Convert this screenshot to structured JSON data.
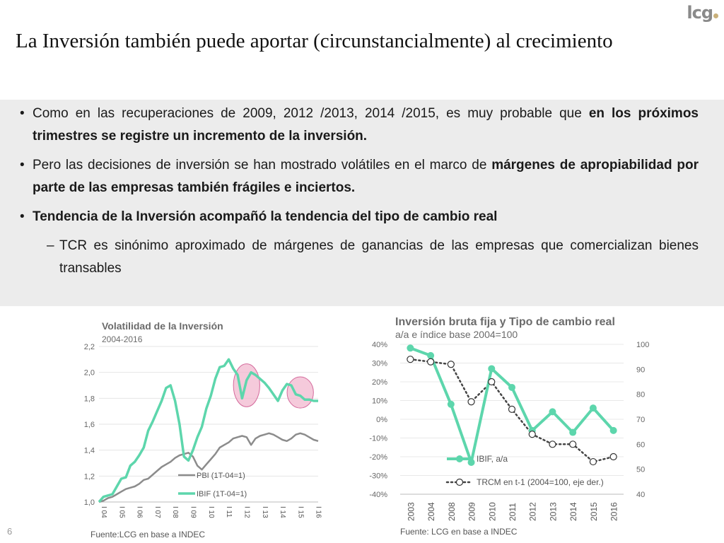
{
  "slide": {
    "title": "La Inversión también puede aportar (circunstancialmente) al crecimiento",
    "logo": "lcg",
    "page_number": "6"
  },
  "bullets": {
    "b1_part1": "Como en las recuperaciones de 2009, 2012 /2013, 2014 /2015, es muy probable que ",
    "b1_bold": "en los próximos trimestres se registre un incremento de la inversión.",
    "b2_part1": "Pero las decisiones de inversión se han mostrado volátiles en el marco de ",
    "b2_bold": "márgenes de apropiabilidad por parte de las empresas también frágiles e inciertos.",
    "b3_bold": "Tendencia de la Inversión acompañó la tendencia del tipo de cambio real",
    "b4_dash": "–",
    "b4_text": "TCR es sinónimo aproximado de márgenes de ganancias de las empresas que comercializan bienes transables"
  },
  "chart_data": [
    {
      "type": "line",
      "title": "Volatilidad de la Inversión",
      "subtitle": "2004-2016",
      "source": "Fuente:LCG en base a INDEC",
      "ylim": [
        1.0,
        2.2
      ],
      "yticks": [
        "1,0",
        "1,2",
        "1,4",
        "1,6",
        "1,8",
        "2,0",
        "2,2"
      ],
      "xticks": [
        "I 04",
        "I 05",
        "I 06",
        "I 07",
        "I 08",
        "I 09",
        "I 10",
        "I 11",
        "I 12",
        "I 13",
        "I 14",
        "I 15",
        "I 16"
      ],
      "legend_placement": "bottom-center",
      "colors": {
        "pbi": "#8c8c8c",
        "ibif": "#5dd6ac",
        "highlight": "#f2b8cf"
      },
      "highlights": [
        {
          "label": "2012",
          "from_q": 31,
          "to_q": 35
        },
        {
          "label": "2015",
          "from_q": 43,
          "to_q": 47
        }
      ],
      "series": [
        {
          "name": "PBI (1T-04=1)",
          "values": [
            1.0,
            1.01,
            1.03,
            1.04,
            1.06,
            1.08,
            1.1,
            1.11,
            1.12,
            1.14,
            1.17,
            1.18,
            1.21,
            1.24,
            1.27,
            1.29,
            1.31,
            1.34,
            1.36,
            1.37,
            1.38,
            1.35,
            1.28,
            1.25,
            1.29,
            1.33,
            1.37,
            1.42,
            1.44,
            1.46,
            1.49,
            1.5,
            1.51,
            1.5,
            1.44,
            1.49,
            1.51,
            1.52,
            1.53,
            1.52,
            1.5,
            1.48,
            1.47,
            1.49,
            1.52,
            1.53,
            1.52,
            1.5,
            1.48,
            1.47
          ]
        },
        {
          "name": "IBIF (1T-04=1)",
          "values": [
            1.0,
            1.04,
            1.05,
            1.06,
            1.12,
            1.18,
            1.19,
            1.28,
            1.31,
            1.36,
            1.42,
            1.55,
            1.62,
            1.7,
            1.78,
            1.88,
            1.9,
            1.78,
            1.6,
            1.35,
            1.32,
            1.4,
            1.5,
            1.58,
            1.72,
            1.82,
            1.95,
            2.04,
            2.05,
            2.1,
            2.03,
            1.98,
            1.8,
            1.94,
            2.0,
            1.98,
            1.95,
            1.92,
            1.88,
            1.83,
            1.78,
            1.86,
            1.91,
            1.9,
            1.83,
            1.82,
            1.79,
            1.79,
            1.78,
            1.78
          ]
        }
      ]
    },
    {
      "type": "line",
      "title": "Inversión bruta fija y Tipo de cambio real",
      "subtitle": "a/a e índice base 2004=100",
      "source": "Fuente: LCG en base a INDEC",
      "categories": [
        "2003",
        "2004",
        "2008",
        "2009",
        "2010",
        "2011",
        "2012",
        "2013",
        "2014",
        "2015",
        "2016"
      ],
      "ylim_left": [
        -40,
        40
      ],
      "yticks_left": [
        "-40%",
        "-30%",
        "-20%",
        "-10%",
        "0%",
        "10%",
        "20%",
        "30%",
        "40%"
      ],
      "ylim_right": [
        40,
        100
      ],
      "yticks_right": [
        "40",
        "50",
        "60",
        "70",
        "80",
        "90",
        "100"
      ],
      "legend_placement": "bottom-center",
      "colors": {
        "ibif": "#5dd6ac",
        "trcm": "#444444"
      },
      "series": [
        {
          "name": "IBIF, a/a",
          "axis": "left",
          "values": [
            38,
            34,
            8,
            -23,
            27,
            17,
            -6,
            4,
            -7,
            6,
            -6
          ]
        },
        {
          "name": "TRCM en t-1 (2004=100, eje der.)",
          "axis": "right",
          "values": [
            94,
            93,
            92,
            77,
            85,
            74,
            64,
            60,
            60,
            53,
            55
          ]
        }
      ]
    }
  ]
}
